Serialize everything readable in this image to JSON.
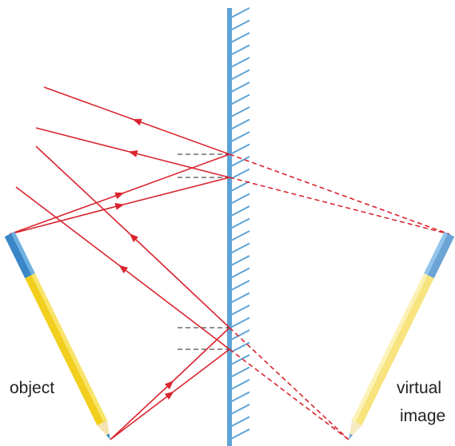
{
  "object_label": "object",
  "image_label": {
    "line1": "virtual",
    "line2": "image"
  }
}
